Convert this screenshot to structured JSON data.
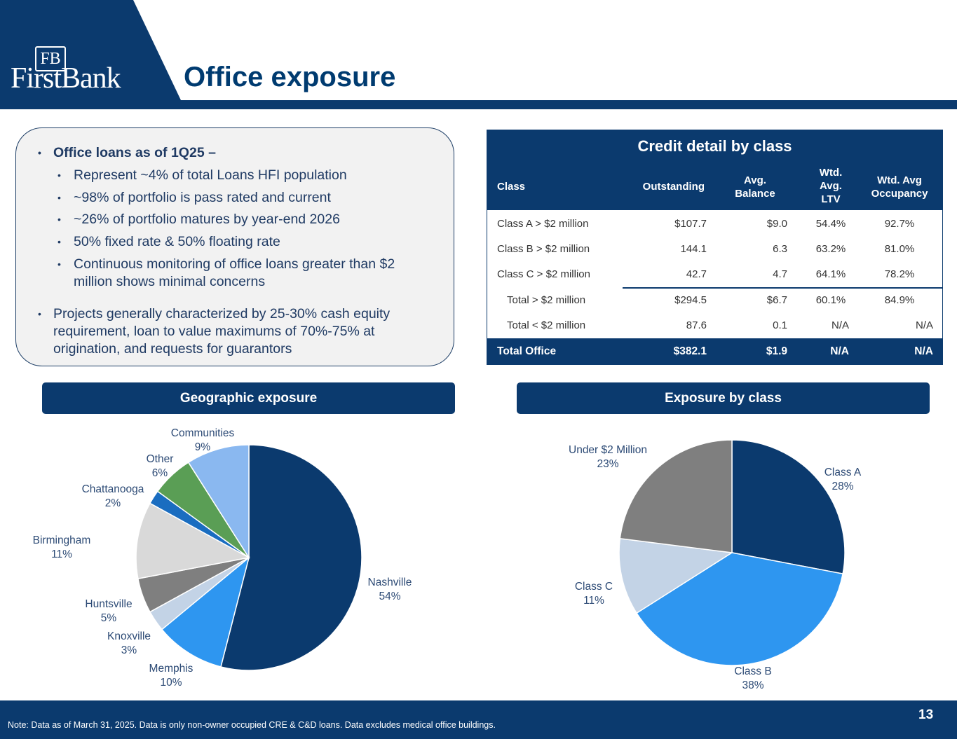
{
  "header": {
    "logo_monogram": "FB",
    "logo_text": "FirstBank",
    "title": "Office exposure",
    "colors": {
      "navy": "#0b3a6e",
      "title": "#003b70"
    }
  },
  "bullets": {
    "main": "Office loans as of 1Q25 –",
    "sub": [
      "Represent ~4% of total Loans HFI population",
      "~98% of portfolio is pass rated and current",
      "~26% of portfolio matures by year-end 2026",
      "50% fixed rate & 50% floating rate",
      "Continuous monitoring of office loans greater than $2",
      "million shows minimal concerns"
    ],
    "second": [
      "Projects generally characterized by 25-30% cash equity",
      "requirement, loan to value maximums of 70%-75% at",
      "origination, and requests for guarantors"
    ]
  },
  "credit_table": {
    "title": "Credit detail by class",
    "headers": {
      "class": "Class",
      "outstanding": "Outstanding",
      "avg_balance": [
        "Avg.",
        "Balance"
      ],
      "ltv": [
        "Wtd.",
        "Avg.",
        "LTV"
      ],
      "occupancy": [
        "Wtd. Avg",
        "Occupancy"
      ]
    },
    "rows": [
      [
        "Class A > $2 million",
        "$107.7",
        "$9.0",
        "54.4%",
        "92.7%"
      ],
      [
        "Class B > $2 million",
        "144.1",
        "6.3",
        "63.2%",
        "81.0%"
      ],
      [
        "Class C > $2 million",
        "42.7",
        "4.7",
        "64.1%",
        "78.2%"
      ],
      [
        "Total > $2 million",
        "$294.5",
        "$6.7",
        "60.1%",
        "84.9%"
      ],
      [
        "Total < $2 million",
        "87.6",
        "0.1",
        "N/A",
        "N/A"
      ]
    ],
    "total": [
      "Total Office",
      "$382.1",
      "$1.9",
      "N/A",
      "N/A"
    ]
  },
  "sections": {
    "geo": "Geographic exposure",
    "cls": "Exposure by class"
  },
  "chart_data": [
    {
      "type": "pie",
      "title": "Geographic exposure",
      "slices": [
        {
          "label": "Nashville",
          "value": 54,
          "pct": "54%",
          "color": "#0b3a6e"
        },
        {
          "label": "Memphis",
          "value": 10,
          "pct": "10%",
          "color": "#2e96f0"
        },
        {
          "label": "Knoxville",
          "value": 3,
          "pct": "3%",
          "color": "#c3d3e6"
        },
        {
          "label": "Huntsville",
          "value": 5,
          "pct": "5%",
          "color": "#7f7f7f"
        },
        {
          "label": "Birmingham",
          "value": 11,
          "pct": "11%",
          "color": "#d9d9d9"
        },
        {
          "label": "Chattanooga",
          "value": 2,
          "pct": "2%",
          "color": "#1a6dc0"
        },
        {
          "label": "Other",
          "value": 6,
          "pct": "6%",
          "color": "#5a9e55"
        },
        {
          "label": "Communities",
          "value": 9,
          "pct": "9%",
          "color": "#8ab8f0"
        }
      ]
    },
    {
      "type": "pie",
      "title": "Exposure by class",
      "slices": [
        {
          "label": "Class A",
          "value": 28,
          "pct": "28%",
          "color": "#0b3a6e"
        },
        {
          "label": "Class B",
          "value": 38,
          "pct": "38%",
          "color": "#2e96f0"
        },
        {
          "label": "Class C",
          "value": 11,
          "pct": "11%",
          "color": "#c3d3e6"
        },
        {
          "label": "Under $2 Million",
          "value": 23,
          "pct": "23%",
          "color": "#7f7f7f"
        }
      ]
    }
  ],
  "footer": {
    "note": "Note: Data as of March 31, 2025. Data is only non-owner occupied CRE & C&D loans.  Data excludes medical office buildings.",
    "page_number": "13"
  }
}
